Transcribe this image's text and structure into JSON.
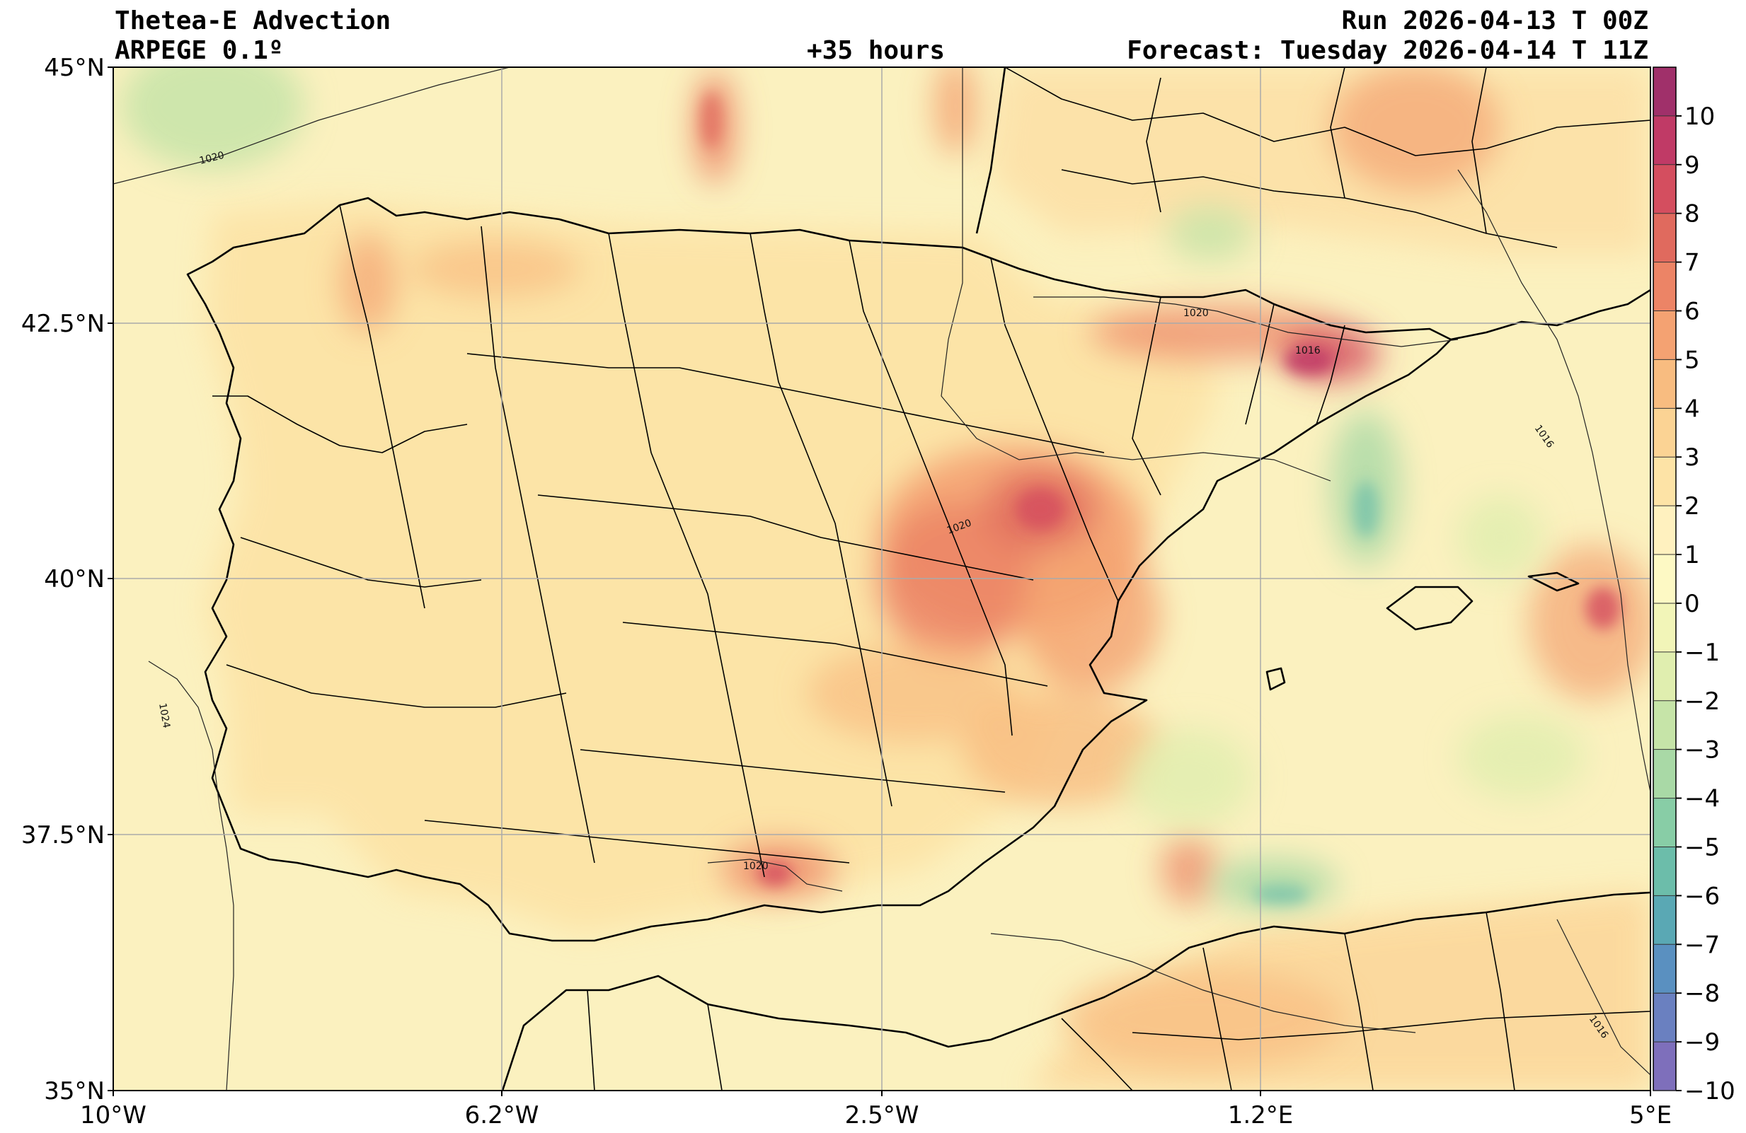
{
  "header": {
    "title": "Thetea-E Advection",
    "model": "ARPEGE 0.1º",
    "lead": "+35 hours",
    "run": "Run 2026-04-13 T 00Z",
    "forecast": "Forecast: Tuesday 2026-04-14 T 11Z"
  },
  "axes": {
    "lat_labels": [
      "45°N",
      "42.5°N",
      "40°N",
      "37.5°N",
      "35°N"
    ],
    "lon_labels": [
      "10°W",
      "6.2°W",
      "2.5°W",
      "1.2°E",
      "5°E"
    ]
  },
  "colorbar": {
    "levels": [
      10,
      9,
      8,
      7,
      6,
      5,
      4,
      3,
      2,
      1,
      0,
      -1,
      -2,
      -3,
      -4,
      -5,
      -6,
      -7,
      -8,
      -9,
      -10
    ],
    "labels": [
      "10",
      "9",
      "8",
      "7",
      "6",
      "5",
      "4",
      "3",
      "2",
      "1",
      "0",
      "−1",
      "−2",
      "−3",
      "−4",
      "−5",
      "−6",
      "−7",
      "−8",
      "−9",
      "−10"
    ],
    "colors": [
      "#a0306a",
      "#c03a66",
      "#d44e5f",
      "#e06a5e",
      "#ec8466",
      "#f4a272",
      "#f8bc80",
      "#fbd394",
      "#fde3a6",
      "#fff1bf",
      "#fdf9c4",
      "#f2f5b8",
      "#e0eeaf",
      "#c6e4a8",
      "#a9d9a6",
      "#88cda6",
      "#6cbdaa",
      "#5aa8b4",
      "#5a90c0",
      "#6a80c0",
      "#7e6fbb"
    ]
  },
  "isobars": {
    "labels": [
      "1020",
      "1020",
      "1016",
      "1020",
      "1020",
      "1016",
      "1024",
      "1016"
    ]
  },
  "colors": {
    "land_base": "#fde4a8",
    "sea_base": "#fbf1bf",
    "border": "#000000",
    "grid": "#aaaaaa"
  }
}
